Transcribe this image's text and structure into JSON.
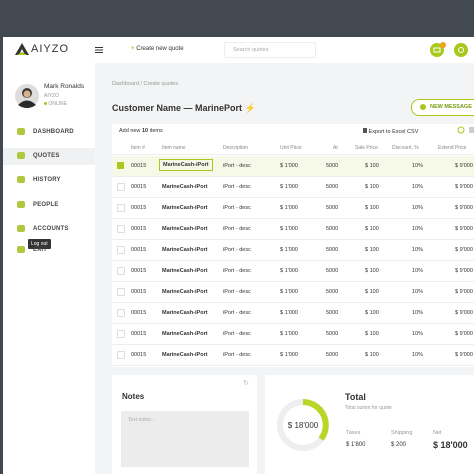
{
  "header": {
    "logo": "AIYZO",
    "create": "Create new quote",
    "search": "Search quotes"
  },
  "sidebar": {
    "user": "Mark Ronalds",
    "company": "AIYZO",
    "status": "ONLINE",
    "menu": [
      "DASHBOARD",
      "QUOTES",
      "HISTORY",
      "PEOPLE",
      "ACCOUNTS",
      "EXIT"
    ],
    "active": 1,
    "tooltip": "Log out"
  },
  "breadcrumb": [
    "Dashboard",
    "Create quotes"
  ],
  "title": "Customer Name — MarinePort",
  "button": "NEW MESSAGE",
  "table": {
    "add_label": "Add new",
    "count": "10",
    "items": "items",
    "export": "Export to Excel CSV",
    "columns": [
      "Item #",
      "Item name",
      "Description",
      "Unit Price",
      "At",
      "Sale Price",
      "Discount, %",
      "Extend Price"
    ],
    "selected_row": 0,
    "rows": [
      [
        "00015",
        "MarineCash-iPort",
        "iPort - desc",
        "$ 1'000",
        "5000",
        "$ 100",
        "10%",
        "$ 9'000"
      ],
      [
        "00015",
        "MarineCash-iPort",
        "iPort - desc",
        "$ 1'000",
        "5000",
        "$ 100",
        "10%",
        "$ 9'000"
      ],
      [
        "00015",
        "MarineCash-iPort",
        "iPort - desc",
        "$ 1'000",
        "5000",
        "$ 100",
        "10%",
        "$ 9'000"
      ],
      [
        "00015",
        "MarineCash-iPort",
        "iPort - desc",
        "$ 1'000",
        "5000",
        "$ 100",
        "10%",
        "$ 9'000"
      ],
      [
        "00015",
        "MarineCash-iPort",
        "iPort - desc",
        "$ 1'000",
        "5000",
        "$ 100",
        "10%",
        "$ 9'000"
      ],
      [
        "00015",
        "MarineCash-iPort",
        "iPort - desc",
        "$ 1'000",
        "5000",
        "$ 100",
        "10%",
        "$ 9'000"
      ],
      [
        "00015",
        "MarineCash-iPort",
        "iPort - desc",
        "$ 1'000",
        "5000",
        "$ 100",
        "10%",
        "$ 9'000"
      ],
      [
        "00015",
        "MarineCash-iPort",
        "iPort - desc",
        "$ 1'000",
        "5000",
        "$ 100",
        "10%",
        "$ 9'000"
      ],
      [
        "00015",
        "MarineCash-iPort",
        "iPort - desc",
        "$ 1'000",
        "5000",
        "$ 100",
        "10%",
        "$ 9'000"
      ],
      [
        "00015",
        "MarineCash-iPort",
        "iPort - desc",
        "$ 1'000",
        "5000",
        "$ 100",
        "10%",
        "$ 9'000"
      ]
    ]
  },
  "notes": {
    "title": "Notes",
    "placeholder": "Text notes..."
  },
  "total": {
    "amount": "$ 18'000",
    "title": "Total",
    "subtitle": "Total summ for quote",
    "labels": [
      "Taxes",
      "Shipping",
      "Net"
    ],
    "values": [
      "$ 1'800",
      "$ 200",
      "$ 18'000"
    ]
  }
}
